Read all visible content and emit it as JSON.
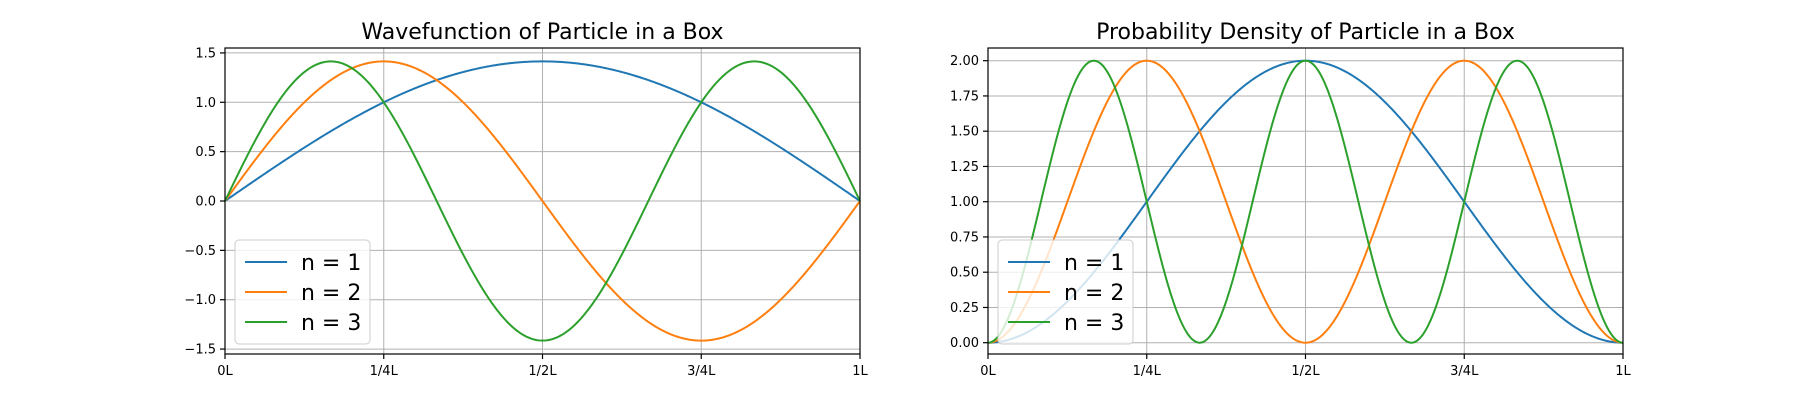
{
  "chart_data": [
    {
      "type": "line",
      "title": "Wavefunction of Particle in a Box",
      "xlabel": "",
      "ylabel": "",
      "function": "wavefunction",
      "x_range": [
        0,
        1
      ],
      "ylim": [
        -1.55,
        1.55
      ],
      "grid": true,
      "legend_placement": "lower-left",
      "x_ticks": [
        0,
        0.25,
        0.5,
        0.75,
        1
      ],
      "x_tick_labels": [
        "0L",
        "1/4L",
        "1/2L",
        "3/4L",
        "1L"
      ],
      "y_ticks": [
        -1.5,
        -1.0,
        -0.5,
        0.0,
        0.5,
        1.0,
        1.5
      ],
      "y_tick_labels": [
        "−1.5",
        "−1.0",
        "−0.5",
        "0.0",
        "0.5",
        "1.0",
        "1.5"
      ],
      "series": [
        {
          "name": "n = 1",
          "n": 1,
          "color": "#1f77b4"
        },
        {
          "name": "n = 2",
          "n": 2,
          "color": "#ff7f0e"
        },
        {
          "name": "n = 3",
          "n": 3,
          "color": "#2ca02c"
        }
      ]
    },
    {
      "type": "line",
      "title": "Probability Density of Particle in a Box",
      "xlabel": "",
      "ylabel": "",
      "function": "probability_density",
      "x_range": [
        0,
        1
      ],
      "ylim": [
        -0.08,
        2.09
      ],
      "grid": true,
      "legend_placement": "lower-left",
      "x_ticks": [
        0,
        0.25,
        0.5,
        0.75,
        1
      ],
      "x_tick_labels": [
        "0L",
        "1/4L",
        "1/2L",
        "3/4L",
        "1L"
      ],
      "y_ticks": [
        0.0,
        0.25,
        0.5,
        0.75,
        1.0,
        1.25,
        1.5,
        1.75,
        2.0
      ],
      "y_tick_labels": [
        "0.00",
        "0.25",
        "0.50",
        "0.75",
        "1.00",
        "1.25",
        "1.50",
        "1.75",
        "2.00"
      ],
      "series": [
        {
          "name": "n = 1",
          "n": 1,
          "color": "#1f77b4"
        },
        {
          "name": "n = 2",
          "n": 2,
          "color": "#ff7f0e"
        },
        {
          "name": "n = 3",
          "n": 3,
          "color": "#2ca02c"
        }
      ]
    }
  ]
}
